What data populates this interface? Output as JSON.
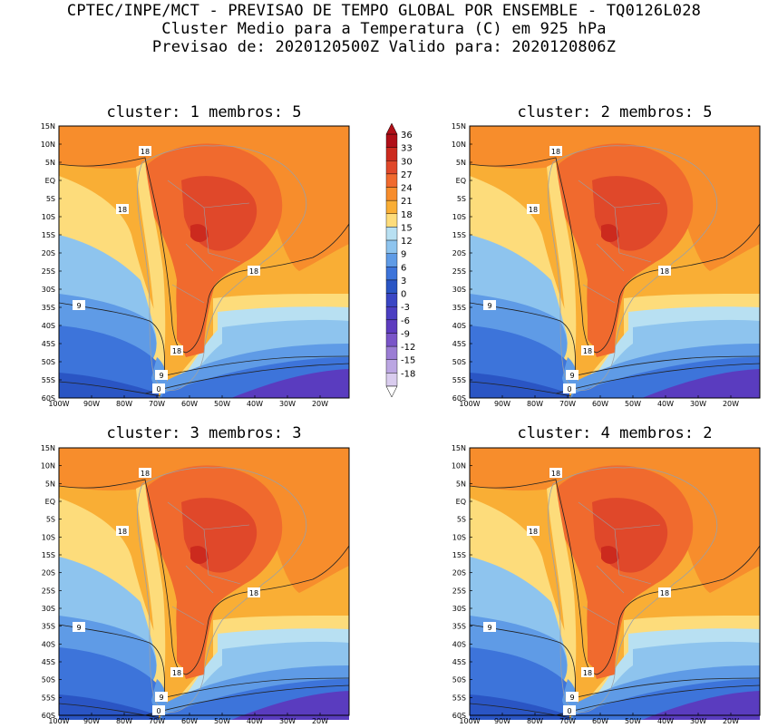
{
  "header": {
    "line1": "CPTEC/INPE/MCT - PREVISAO DE TEMPO GLOBAL POR ENSEMBLE - TQ0126L028",
    "line2": "Cluster Medio para a Temperatura (C) em 925 hPa",
    "line3": "Previsao de: 2020120500Z   Valido para: 2020120806Z"
  },
  "panels": [
    {
      "title": "cluster: 1   membros: 5"
    },
    {
      "title": "cluster: 2   membros: 5"
    },
    {
      "title": "cluster: 3   membros: 3"
    },
    {
      "title": "cluster: 4   membros: 2"
    }
  ],
  "axes": {
    "lat_labels": [
      "15N",
      "10N",
      "5N",
      "EQ",
      "5S",
      "10S",
      "15S",
      "20S",
      "25S",
      "30S",
      "35S",
      "40S",
      "45S",
      "50S",
      "55S",
      "60S"
    ],
    "lon_labels": [
      "100W",
      "90W",
      "80W",
      "70W",
      "60W",
      "50W",
      "40W",
      "30W",
      "20W"
    ]
  },
  "colorbar": {
    "labels": [
      "36",
      "33",
      "30",
      "27",
      "24",
      "21",
      "18",
      "15",
      "12",
      "9",
      "6",
      "3",
      "0",
      "-3",
      "-6",
      "-9",
      "-12",
      "-15",
      "-18"
    ],
    "colors": [
      "#b00f18",
      "#cc2a1e",
      "#e0482a",
      "#f06a2e",
      "#f78d2c",
      "#f9ae35",
      "#fddc7b",
      "#b8e0f2",
      "#8ec4ee",
      "#5f9be6",
      "#3d74da",
      "#2a55c4",
      "#3a46c4",
      "#4b3fc2",
      "#5e3cbf",
      "#7a55c8",
      "#9b7dd4",
      "#bba6e2",
      "#d9ccee"
    ]
  },
  "contour_labels": [
    "18",
    "9",
    "0"
  ]
}
